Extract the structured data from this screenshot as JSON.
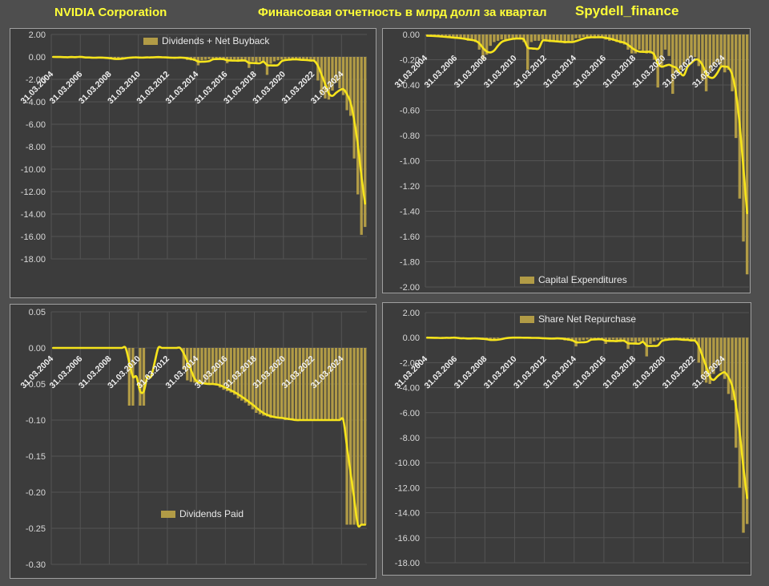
{
  "header": {
    "company": "NVIDIA Corporation",
    "title": "Финансовая отчетность в млрд долл за квартал",
    "watermark": "Spydell_finance"
  },
  "colors": {
    "page_background": "#4e4e4e",
    "panel_background": "#3c3c3c",
    "panel_border": "#9f9f9f",
    "bar": "#b19b46",
    "line": "#f6e41c",
    "grid": "#545454",
    "y_tick_text": "#d9d9d9",
    "x_tick_text": "#f1f1f1",
    "header_text": "#ffff38"
  },
  "x_axis": {
    "period": "quarterly",
    "n_points": 87,
    "tick_every_n_points": 8,
    "tick_labels": [
      "31.03.2004",
      "31.03.2006",
      "31.03.2008",
      "31.03.2010",
      "31.03.2012",
      "31.03.2014",
      "31.03.2016",
      "31.03.2018",
      "31.03.2020",
      "31.03.2022",
      "31.03.2024"
    ]
  },
  "chart_data": [
    {
      "id": "dividends-net-buyback",
      "type": "bar",
      "line_type": "smoothed 4-quarter moving average",
      "legend": "Dividends + Net Buyback",
      "legend_position": "top-center",
      "ylim": [
        -18,
        2
      ],
      "ytick_labels": [
        "2.00",
        "0.00",
        "-2.00",
        "-4.00",
        "-6.00",
        "-8.00",
        "-10.00",
        "-12.00",
        "-14.00",
        "-16.00",
        "-18.00"
      ],
      "values": [
        0,
        -0.01,
        -0.02,
        -0.05,
        -0.03,
        0.06,
        -0.06,
        0.04,
        -0.08,
        -0.1,
        -0.06,
        -0.05,
        -0.05,
        -0.06,
        -0.12,
        -0.15,
        -0.18,
        -0.26,
        -0.15,
        -0.05,
        0,
        -0.08,
        -0.08,
        0,
        -0.08,
        -0.08,
        -0.02,
        0,
        -0.02,
        -0.03,
        -0.05,
        -0.08,
        -0.06,
        -0.1,
        -0.05,
        -0.03,
        -0.13,
        -0.27,
        -0.3,
        -0.35,
        -0.75,
        -0.3,
        -0.25,
        -0.2,
        -0.15,
        -0.17,
        -0.21,
        -0.26,
        -0.56,
        -0.26,
        -0.22,
        -0.32,
        -0.42,
        -0.38,
        -0.98,
        -0.39,
        -0.49,
        -0.39,
        -0.44,
        -1.6,
        -0.6,
        -0.4,
        -0.3,
        -0.25,
        -0.2,
        -0.25,
        -0.2,
        -0.22,
        -0.3,
        -0.35,
        -0.25,
        -0.4,
        -0.4,
        -2.1,
        -3.4,
        -3.7,
        -3.8,
        -3,
        -2.3,
        -2.8,
        -3.4,
        -4.75,
        -5.25,
        -9.05,
        -12.25,
        -15.85,
        -15.15
      ]
    },
    {
      "id": "capital-expenditures",
      "type": "bar",
      "line_type": "smoothed 4-quarter moving average",
      "legend": "Capital Expenditures",
      "legend_position": "bottom-center",
      "ylim": [
        -2,
        0
      ],
      "ytick_labels": [
        "0.00",
        "-0.20",
        "-0.40",
        "-0.60",
        "-0.80",
        "-1.00",
        "-1.20",
        "-1.40",
        "-1.60",
        "-1.80",
        "-2.00"
      ],
      "values": [
        -0.01,
        -0.012,
        -0.015,
        -0.018,
        -0.02,
        -0.022,
        -0.025,
        -0.03,
        -0.03,
        -0.035,
        -0.04,
        -0.05,
        -0.05,
        -0.06,
        -0.12,
        -0.2,
        -0.16,
        -0.09,
        -0.06,
        -0.05,
        -0.04,
        -0.04,
        -0.03,
        -0.03,
        -0.03,
        -0.04,
        -0.06,
        -0.28,
        -0.06,
        -0.05,
        -0.05,
        -0.04,
        -0.05,
        -0.06,
        -0.06,
        -0.05,
        -0.06,
        -0.07,
        -0.06,
        -0.05,
        -0.03,
        -0.03,
        -0.02,
        -0.02,
        -0.02,
        -0.03,
        -0.02,
        -0.02,
        -0.04,
        -0.05,
        -0.05,
        -0.06,
        -0.07,
        -0.08,
        -0.12,
        -0.15,
        -0.15,
        -0.12,
        -0.13,
        -0.15,
        -0.15,
        -0.2,
        -0.42,
        -0.25,
        -0.12,
        -0.17,
        -0.47,
        -0.3,
        -0.28,
        -0.24,
        -0.2,
        -0.18,
        -0.18,
        -0.25,
        -0.36,
        -0.45,
        -0.3,
        -0.25,
        -0.22,
        -0.25,
        -0.3,
        -0.28,
        -0.45,
        -0.82,
        -1.3,
        -1.64,
        -1.9
      ]
    },
    {
      "id": "dividends-paid",
      "type": "bar",
      "line_type": "smoothed 4-quarter moving average",
      "legend": "Dividends Paid",
      "legend_position": "bottom-center",
      "ylim": [
        -0.3,
        0.05
      ],
      "ytick_labels": [
        "0.05",
        "0.00",
        "-0.05",
        "-0.10",
        "-0.15",
        "-0.20",
        "-0.25",
        "-0.30"
      ],
      "values": [
        0,
        0,
        0,
        0,
        0,
        0,
        0,
        0,
        0,
        0,
        0,
        0,
        0,
        0,
        0,
        0,
        0,
        0,
        0,
        0,
        0,
        -0.08,
        -0.08,
        0,
        -0.08,
        -0.08,
        0,
        0,
        0,
        0,
        0,
        0,
        0,
        0,
        0,
        0,
        -0.03,
        -0.045,
        -0.047,
        -0.048,
        -0.05,
        -0.05,
        -0.05,
        -0.05,
        -0.05,
        -0.052,
        -0.055,
        -0.058,
        -0.06,
        -0.062,
        -0.065,
        -0.07,
        -0.073,
        -0.076,
        -0.08,
        -0.085,
        -0.09,
        -0.092,
        -0.094,
        -0.095,
        -0.097,
        -0.097,
        -0.097,
        -0.097,
        -0.1,
        -0.1,
        -0.1,
        -0.1,
        -0.1,
        -0.1,
        -0.1,
        -0.1,
        -0.1,
        -0.1,
        -0.1,
        -0.1,
        -0.1,
        -0.1,
        -0.1,
        -0.1,
        -0.1,
        -0.245,
        -0.245,
        -0.245,
        -0.245,
        -0.245,
        -0.245
      ]
    },
    {
      "id": "share-net-repurchase",
      "type": "bar",
      "line_type": "smoothed 4-quarter moving average",
      "legend": "Share Net Repurchase",
      "legend_position": "top-center",
      "ylim": [
        -18,
        2
      ],
      "ytick_labels": [
        "2.00",
        "0.00",
        "-2.00",
        "-4.00",
        "-6.00",
        "-8.00",
        "-10.00",
        "-12.00",
        "-14.00",
        "-16.00",
        "-18.00"
      ],
      "values": [
        0,
        -0.01,
        -0.02,
        -0.05,
        -0.03,
        0.06,
        -0.06,
        0.04,
        -0.08,
        -0.1,
        -0.06,
        -0.05,
        -0.05,
        -0.06,
        -0.12,
        -0.15,
        -0.18,
        -0.26,
        -0.15,
        -0.05,
        0,
        0,
        0,
        0,
        0,
        0,
        -0.02,
        0,
        -0.02,
        -0.03,
        -0.05,
        -0.08,
        -0.06,
        -0.1,
        -0.05,
        -0.03,
        -0.1,
        -0.22,
        -0.25,
        -0.3,
        -0.7,
        -0.25,
        -0.2,
        -0.15,
        -0.1,
        -0.12,
        -0.15,
        -0.2,
        -0.5,
        -0.2,
        -0.15,
        -0.25,
        -0.35,
        -0.3,
        -0.9,
        -0.3,
        -0.4,
        -0.3,
        -0.35,
        -1.5,
        -0.5,
        -0.3,
        -0.2,
        -0.15,
        -0.1,
        -0.15,
        -0.1,
        -0.12,
        -0.2,
        -0.25,
        -0.15,
        -0.3,
        -0.3,
        -2,
        -3.3,
        -3.6,
        -3.7,
        -2.9,
        -2.2,
        -2.7,
        -3.3,
        -4.5,
        -5,
        -8.8,
        -12,
        -15.6,
        -14.9
      ]
    }
  ]
}
